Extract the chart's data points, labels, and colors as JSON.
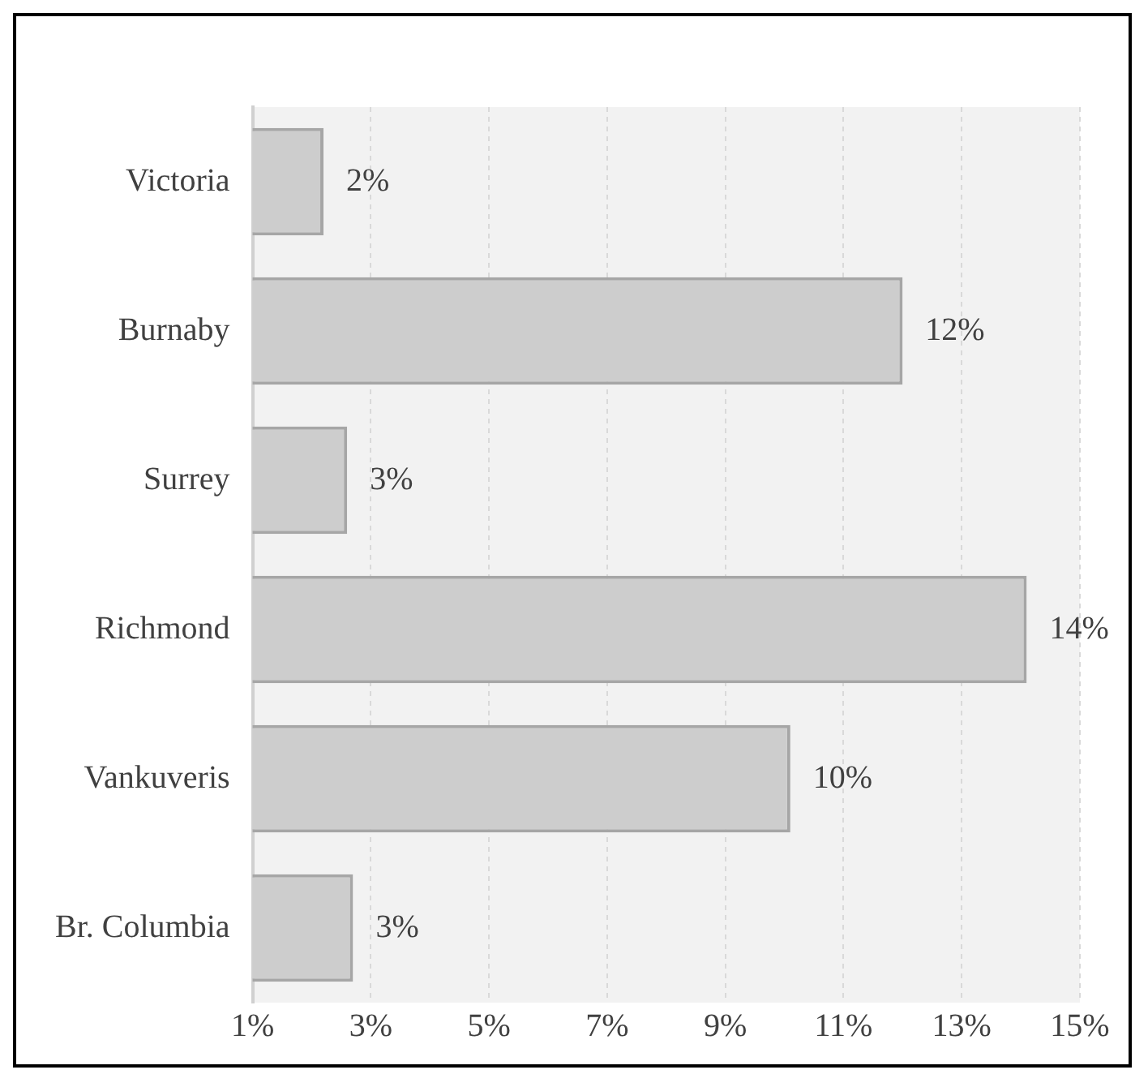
{
  "chart_data": {
    "type": "bar",
    "orientation": "horizontal",
    "categories": [
      "Victoria",
      "Burnaby",
      "Surrey",
      "Richmond",
      "Vankuveris",
      "Br. Columbia"
    ],
    "values": [
      2.2,
      12.0,
      2.6,
      14.1,
      10.1,
      2.7
    ],
    "value_labels": [
      "2%",
      "12%",
      "3%",
      "14%",
      "10%",
      "3%"
    ],
    "color": "#cdcdcd",
    "xlim": [
      1,
      15
    ],
    "xticks": [
      {
        "value": 1,
        "label": "1%"
      },
      {
        "value": 3,
        "label": "3%"
      },
      {
        "value": 5,
        "label": "5%"
      },
      {
        "value": 7,
        "label": "7%"
      },
      {
        "value": 9,
        "label": "9%"
      },
      {
        "value": 11,
        "label": "11%"
      },
      {
        "value": 13,
        "label": "13%"
      },
      {
        "value": 15,
        "label": "15%"
      }
    ],
    "grid": "x",
    "legend": false
  }
}
